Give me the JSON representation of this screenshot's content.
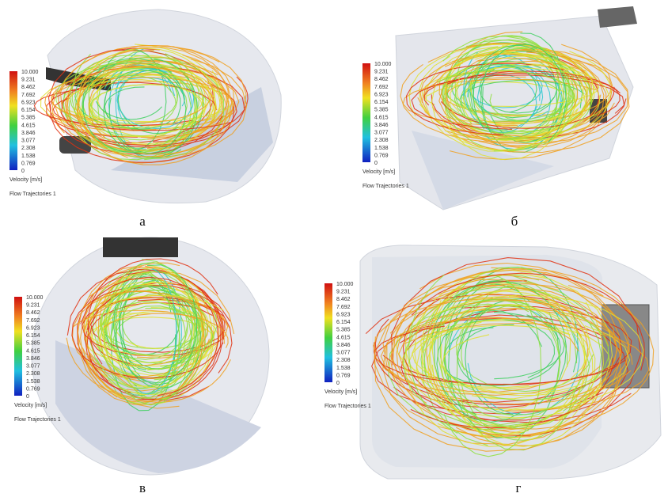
{
  "panels": [
    {
      "caption": "а",
      "legend": {
        "ticks": [
          "10.000",
          "9.231",
          "8.462",
          "7.692",
          "6.923",
          "6.154",
          "5.385",
          "4.615",
          "3.846",
          "3.077",
          "2.308",
          "1.538",
          "0.769",
          "0"
        ],
        "label": "Velocity [m/s]",
        "title": "Flow Trajectories 1"
      }
    },
    {
      "caption": "б",
      "legend": {
        "ticks": [
          "10.000",
          "9.231",
          "8.462",
          "7.692",
          "6.923",
          "6.154",
          "5.385",
          "4.615",
          "3.846",
          "3.077",
          "2.308",
          "1.538",
          "0.769",
          "0"
        ],
        "label": "Velocity [m/s]",
        "title": "Flow Trajectories 1"
      }
    },
    {
      "caption": "в",
      "legend": {
        "ticks": [
          "10.000",
          "9.231",
          "8.462",
          "7.692",
          "6.923",
          "6.154",
          "5.385",
          "4.615",
          "3.846",
          "3.077",
          "2.308",
          "1.538",
          "0.769",
          "0"
        ],
        "label": "Velocity [m/s]",
        "title": "Flow Trajectories 1"
      }
    },
    {
      "caption": "г",
      "legend": {
        "ticks": [
          "10.000",
          "9.231",
          "8.462",
          "7.692",
          "6.923",
          "6.154",
          "5.385",
          "4.615",
          "3.846",
          "3.077",
          "2.308",
          "1.538",
          "0.769",
          "0"
        ],
        "label": "Velocity [m/s]",
        "title": "Flow Trajectories 1"
      }
    }
  ]
}
